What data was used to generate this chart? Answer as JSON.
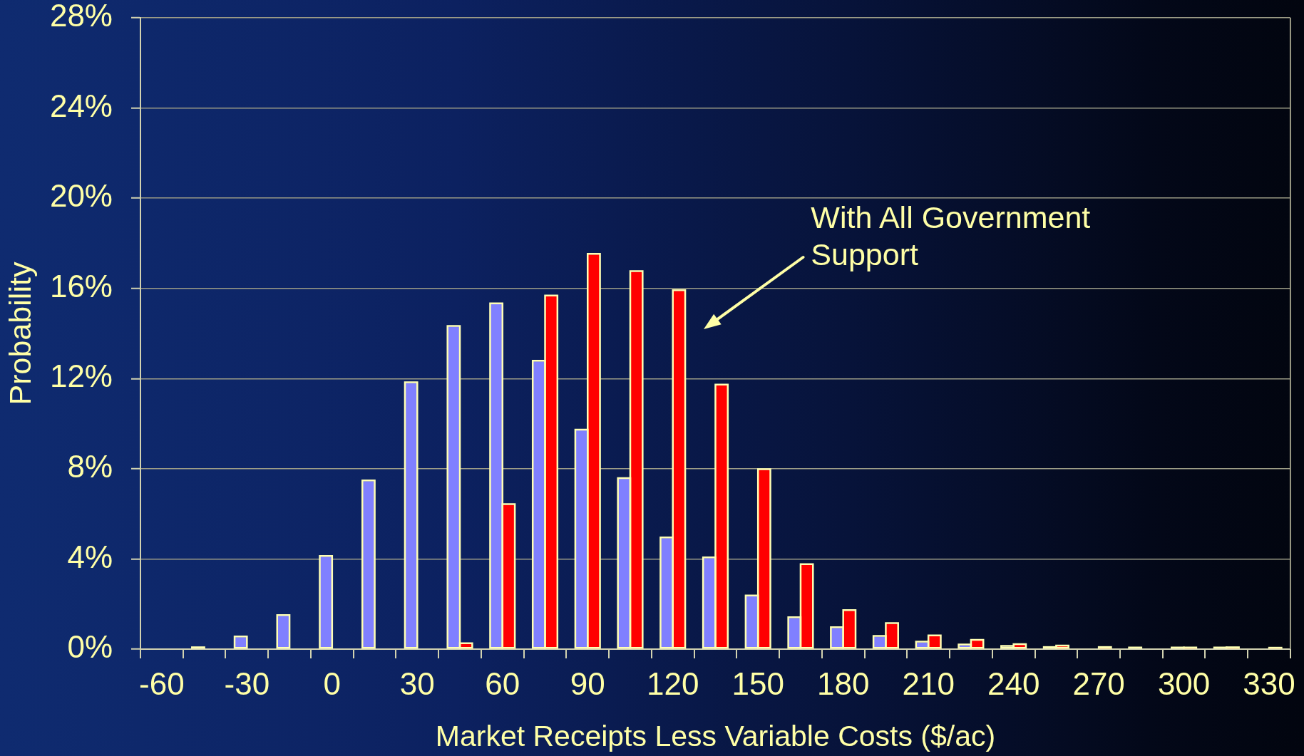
{
  "chart_data": {
    "type": "bar",
    "categories": [
      "-60",
      null,
      "-30",
      null,
      "0",
      null,
      "30",
      null,
      "60",
      null,
      "90",
      null,
      "120",
      null,
      "150",
      null,
      "180",
      null,
      "210",
      null,
      "240",
      null,
      "270",
      null,
      "300",
      null,
      "330"
    ],
    "series": [
      {
        "color": "#8080ff",
        "values": [
          null,
          0.05,
          0.53,
          1.48,
          4.1,
          7.45,
          11.8,
          14.3,
          15.3,
          12.76,
          9.7,
          7.55,
          4.92,
          4.04,
          2.35,
          1.38,
          0.94,
          0.55,
          0.3,
          0.17,
          0.11,
          0.06,
          null,
          0.04,
          0.04,
          0.04,
          null
        ]
      },
      {
        "color": "#ff0000",
        "values": [
          null,
          null,
          null,
          null,
          null,
          null,
          null,
          0.23,
          6.4,
          15.65,
          17.5,
          16.73,
          15.89,
          11.7,
          7.95,
          3.74,
          1.7,
          1.12,
          0.58,
          0.38,
          0.19,
          0.13,
          0.06,
          null,
          0.04,
          0.05,
          0.03
        ]
      }
    ],
    "ylim": [
      0,
      28
    ],
    "yticks": [
      {
        "value": 0,
        "label": "0%"
      },
      {
        "value": 4,
        "label": "4%"
      },
      {
        "value": 8,
        "label": "8%"
      },
      {
        "value": 12,
        "label": "12%"
      },
      {
        "value": 16,
        "label": "16%"
      },
      {
        "value": 20,
        "label": "20%"
      },
      {
        "value": 24,
        "label": "24%"
      },
      {
        "value": 28,
        "label": "28%"
      }
    ],
    "xlabel": "Market Receipts Less Variable Costs ($/ac)",
    "ylabel": "Probability",
    "annotations": [
      "With All Government Support"
    ],
    "grid": "y"
  }
}
